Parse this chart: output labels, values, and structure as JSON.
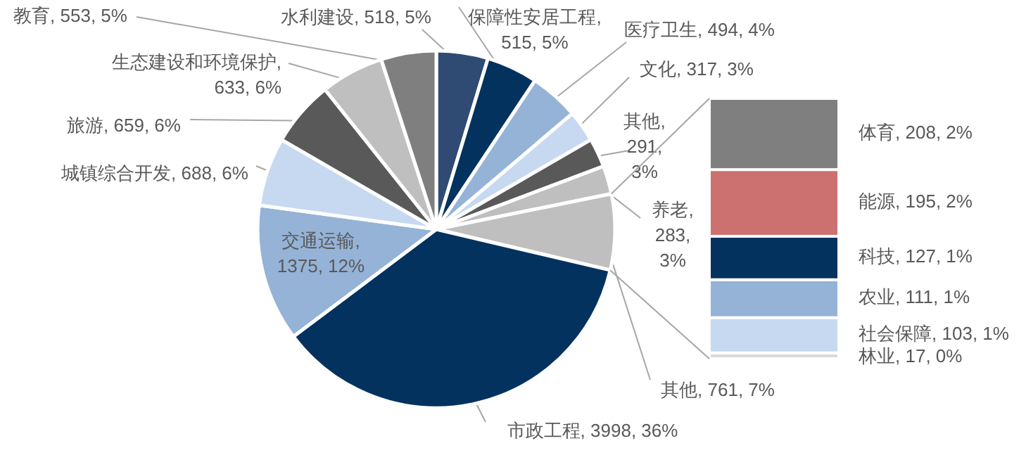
{
  "chart_data": [
    {
      "type": "pie",
      "categories": [
        "水利建设",
        "保障性安居工程",
        "医疗卫生",
        "文化",
        "其他",
        "养老",
        "其他",
        "市政工程",
        "交通运输",
        "城镇综合开发",
        "旅游",
        "生态建设和环境保护",
        "教育"
      ],
      "values": [
        518,
        515,
        494,
        317,
        291,
        283,
        761,
        3998,
        1375,
        688,
        659,
        633,
        553
      ],
      "colors": [
        "#2f4b73",
        "#03325f",
        "#95b3d7",
        "#c6d9f0",
        "#595959",
        "#bfbfbf",
        "#bfbfbf",
        "#03325f",
        "#95b3d7",
        "#c6d9f0",
        "#595959",
        "#bfbfbf",
        "#7f7f7f"
      ],
      "value_labels": [
        ", 518, 5%",
        ",\n515, 5%",
        ", 494, 4%",
        ", 317, 3%",
        ",\n291,\n3%",
        ",\n283,\n3%",
        ", 761, 7%",
        ", 3998, 36%",
        ",\n1375, 12%",
        ", 688, 6%",
        ", 659, 6%",
        ",\n633, 6%",
        ", 553, 5%"
      ]
    },
    {
      "type": "other",
      "values": [
        208,
        195,
        127,
        111,
        103,
        17
      ],
      "colors": [
        "#7f7f7f",
        "#cc7070",
        "#03325f",
        "#95b3d7",
        "#c6d9f0",
        "#d9d9d9"
      ],
      "value_labels": [
        "体育, 208, 2%",
        "能源, 195, 2%",
        "科技, 127, 1%",
        "农业, 111, 1%",
        "社会保障, 103, 1%",
        "林业, 17, 0%"
      ]
    }
  ]
}
